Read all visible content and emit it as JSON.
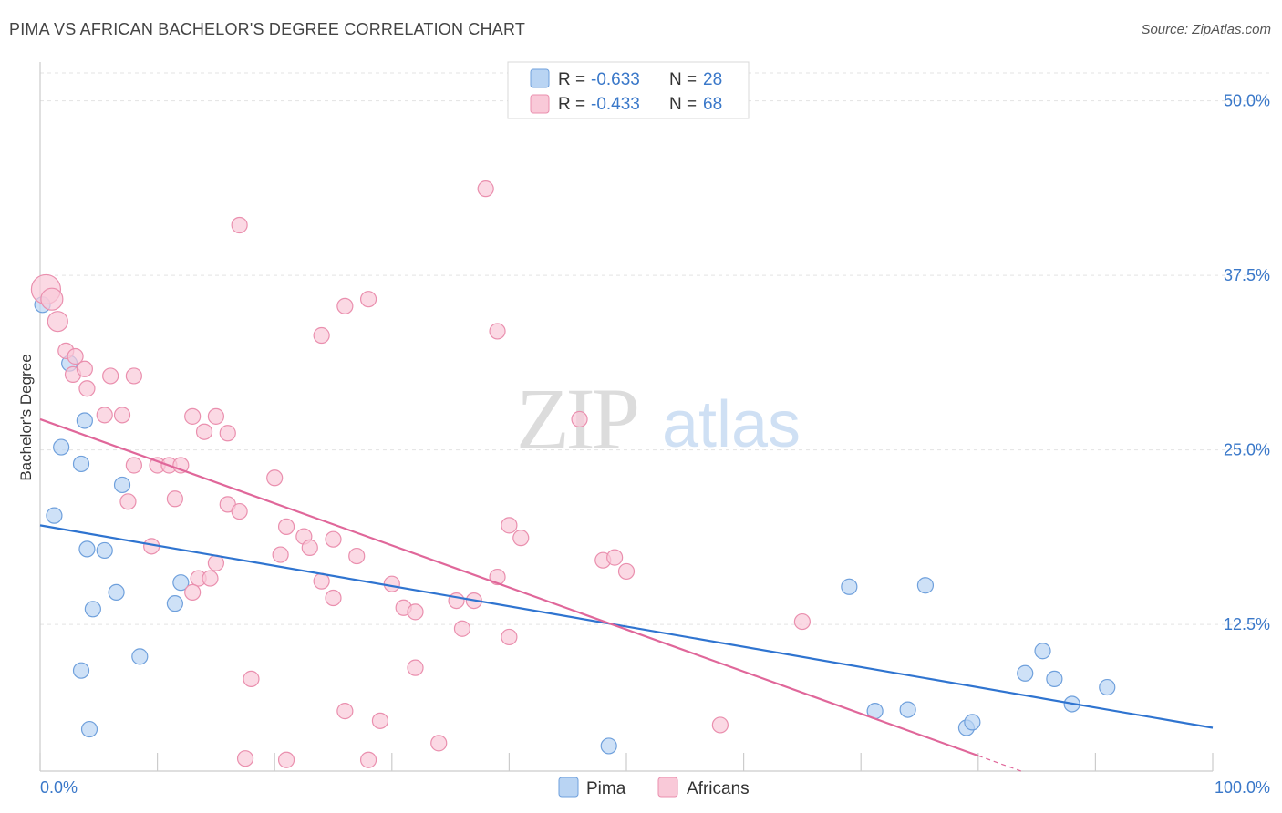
{
  "chart_data": {
    "type": "scatter",
    "title": "PIMA VS AFRICAN BACHELOR'S DEGREE CORRELATION CHART",
    "source": "Source: ZipAtlas.com",
    "ylabel": "Bachelor's Degree",
    "xlim": [
      0,
      100
    ],
    "ylim": [
      2,
      52
    ],
    "x_tick_labels": [
      "0.0%",
      "100.0%"
    ],
    "y_ticks": [
      12.5,
      25.0,
      37.5,
      50.0
    ],
    "y_tick_labels": [
      "12.5%",
      "25.0%",
      "37.5%",
      "50.0%"
    ],
    "grid": true,
    "watermark": {
      "zip": "ZIP",
      "atlas": "atlas"
    },
    "legend_stats": [
      {
        "r_label": "R = ",
        "r_value": "-0.633",
        "n_label": "N = ",
        "n_value": "28"
      },
      {
        "r_label": "R = ",
        "r_value": "-0.433",
        "n_label": "N = ",
        "n_value": "68"
      }
    ],
    "colors": {
      "pima_fill": "#b9d4f3",
      "pima_edge": "#6fa0dc",
      "pima_line": "#2f74d0",
      "africans_fill": "#f9c9d8",
      "africans_edge": "#ea8fae",
      "africans_line": "#e0679a",
      "axis_text": "#3a78c9"
    },
    "series": [
      {
        "name": "Pima",
        "points": [
          [
            0.2,
            35.4
          ],
          [
            1.8,
            25.2
          ],
          [
            2.5,
            31.2
          ],
          [
            3.5,
            24.0
          ],
          [
            1.2,
            20.3
          ],
          [
            3.8,
            27.1
          ],
          [
            7.0,
            22.5
          ],
          [
            4.0,
            17.9
          ],
          [
            5.5,
            17.8
          ],
          [
            6.5,
            14.8
          ],
          [
            4.5,
            13.6
          ],
          [
            12.0,
            15.5
          ],
          [
            11.5,
            14.0
          ],
          [
            8.5,
            10.2
          ],
          [
            3.5,
            9.2
          ],
          [
            4.2,
            5.0
          ],
          [
            48.5,
            3.8
          ],
          [
            69.0,
            15.2
          ],
          [
            75.5,
            15.3
          ],
          [
            71.2,
            6.3
          ],
          [
            74.0,
            6.4
          ],
          [
            79.0,
            5.1
          ],
          [
            79.5,
            5.5
          ],
          [
            85.5,
            10.6
          ],
          [
            84.0,
            9.0
          ],
          [
            86.5,
            8.6
          ],
          [
            88.0,
            6.8
          ],
          [
            91.0,
            8.0
          ]
        ],
        "trend": {
          "x0": 0,
          "y0": 19.6,
          "x1": 100,
          "y1": 5.1
        }
      },
      {
        "name": "Africans",
        "points": [
          [
            0.5,
            36.5
          ],
          [
            1.0,
            35.8
          ],
          [
            1.5,
            34.2
          ],
          [
            2.2,
            32.1
          ],
          [
            3.0,
            31.7
          ],
          [
            2.8,
            30.4
          ],
          [
            3.8,
            30.8
          ],
          [
            4.0,
            29.4
          ],
          [
            6.0,
            30.3
          ],
          [
            8.0,
            30.3
          ],
          [
            17.0,
            41.1
          ],
          [
            26.0,
            35.3
          ],
          [
            28.0,
            35.8
          ],
          [
            24.0,
            33.2
          ],
          [
            39.0,
            33.5
          ],
          [
            38.0,
            43.7
          ],
          [
            16.0,
            26.2
          ],
          [
            13.0,
            27.4
          ],
          [
            15.0,
            27.4
          ],
          [
            5.5,
            27.5
          ],
          [
            7.0,
            27.5
          ],
          [
            14.0,
            26.3
          ],
          [
            8.0,
            23.9
          ],
          [
            10.0,
            23.9
          ],
          [
            11.0,
            23.9
          ],
          [
            12.0,
            23.9
          ],
          [
            7.5,
            21.3
          ],
          [
            11.5,
            21.5
          ],
          [
            20.0,
            23.0
          ],
          [
            16.0,
            21.1
          ],
          [
            17.0,
            20.6
          ],
          [
            21.0,
            19.5
          ],
          [
            25.0,
            18.6
          ],
          [
            22.5,
            18.8
          ],
          [
            23.0,
            18.0
          ],
          [
            20.5,
            17.5
          ],
          [
            15.0,
            16.9
          ],
          [
            13.5,
            15.8
          ],
          [
            14.5,
            15.8
          ],
          [
            24.0,
            15.6
          ],
          [
            13.0,
            14.8
          ],
          [
            25.0,
            14.4
          ],
          [
            27.0,
            17.4
          ],
          [
            31.0,
            13.7
          ],
          [
            32.0,
            13.4
          ],
          [
            37.0,
            14.2
          ],
          [
            39.0,
            15.9
          ],
          [
            40.0,
            19.6
          ],
          [
            41.0,
            18.7
          ],
          [
            46.0,
            27.2
          ],
          [
            48.0,
            17.1
          ],
          [
            49.0,
            17.3
          ],
          [
            50.0,
            16.3
          ],
          [
            30.0,
            15.4
          ],
          [
            36.0,
            12.2
          ],
          [
            40.0,
            11.6
          ],
          [
            32.0,
            9.4
          ],
          [
            18.0,
            8.6
          ],
          [
            26.0,
            6.3
          ],
          [
            29.0,
            5.6
          ],
          [
            34.0,
            4.0
          ],
          [
            21.0,
            2.8
          ],
          [
            28.0,
            2.8
          ],
          [
            65.0,
            12.7
          ],
          [
            58.0,
            5.3
          ],
          [
            17.5,
            2.9
          ],
          [
            9.5,
            18.1
          ],
          [
            35.5,
            14.2
          ]
        ],
        "trend": {
          "x0": 0,
          "y0": 27.2,
          "x1": 80,
          "y1": 3.1,
          "dash_to_x": 90,
          "dash_to_y": 0
        }
      }
    ]
  }
}
